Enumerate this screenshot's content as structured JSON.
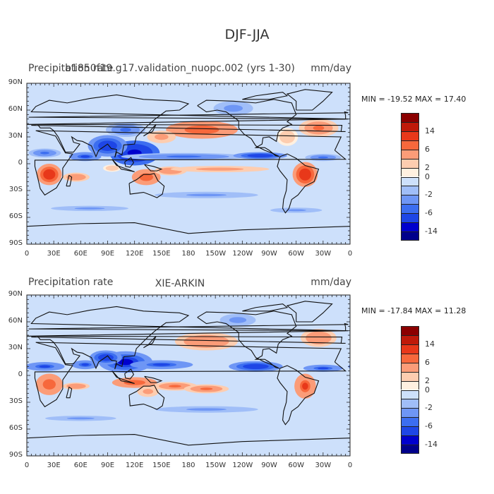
{
  "figure": {
    "title": "DJF-JJA"
  },
  "palette": [
    "#00008b",
    "#0000cd",
    "#1e46e6",
    "#3c6ef0",
    "#6e96f5",
    "#a0bef8",
    "#cde0fb",
    "#fff0e0",
    "#fdcdb0",
    "#fb9c78",
    "#f7683c",
    "#e8381a",
    "#bf1a0a",
    "#8b0000"
  ],
  "colorbar_labels": [
    "14",
    "6",
    "2",
    "0",
    "-2",
    "-6",
    "-14"
  ],
  "x_ticks": [
    "0",
    "30E",
    "60E",
    "90E",
    "120E",
    "150E",
    "180",
    "150W",
    "120W",
    "90W",
    "60W",
    "30W",
    "0"
  ],
  "y_ticks": [
    "90N",
    "60N",
    "30N",
    "0",
    "30S",
    "60S",
    "90S"
  ],
  "panels": [
    {
      "left_title": "Precipitation rate",
      "center_title": "b1850f19.g17.validation_nuopc.002 (yrs 1-30)",
      "units": "mm/day",
      "min_max": "MIN = -19.52  MAX =   17.40"
    },
    {
      "left_title": "Precipitation rate",
      "center_title": "XIE-ARKIN",
      "units": "mm/day",
      "min_max": "MIN = -17.84  MAX =   11.28"
    }
  ],
  "chart_data": [
    {
      "type": "heatmap",
      "title": "b1850f19.g17.validation_nuopc.002 (yrs 1-30)",
      "field": "Precipitation rate",
      "units": "mm/day",
      "min": -19.52,
      "max": 17.4,
      "x_range": [
        0,
        360
      ],
      "y_range": [
        -90,
        90
      ],
      "contour_levels": [
        -14,
        -6,
        -2,
        0,
        2,
        6,
        14
      ],
      "features": [
        {
          "lon": 120,
          "lat": 12,
          "rx": 28,
          "ry": 14,
          "v": -12
        },
        {
          "lon": 90,
          "lat": 20,
          "rx": 22,
          "ry": 12,
          "v": -9
        },
        {
          "lon": 65,
          "lat": 8,
          "rx": 18,
          "ry": 5,
          "v": -7
        },
        {
          "lon": 110,
          "lat": 38,
          "rx": 22,
          "ry": 8,
          "v": -4
        },
        {
          "lon": 175,
          "lat": 8,
          "rx": 70,
          "ry": 4,
          "v": -5
        },
        {
          "lon": 260,
          "lat": 9,
          "rx": 30,
          "ry": 4,
          "v": -8
        },
        {
          "lon": 330,
          "lat": 7,
          "rx": 20,
          "ry": 4,
          "v": -5
        },
        {
          "lon": 20,
          "lat": 12,
          "rx": 18,
          "ry": 5,
          "v": -4
        },
        {
          "lon": 195,
          "lat": 38,
          "rx": 40,
          "ry": 10,
          "v": 6
        },
        {
          "lon": 150,
          "lat": 30,
          "rx": 16,
          "ry": 7,
          "v": 3
        },
        {
          "lon": 325,
          "lat": 40,
          "rx": 22,
          "ry": 10,
          "v": 5
        },
        {
          "lon": 290,
          "lat": 30,
          "rx": 12,
          "ry": 10,
          "v": 2
        },
        {
          "lon": 25,
          "lat": -12,
          "rx": 14,
          "ry": 12,
          "v": 9
        },
        {
          "lon": 310,
          "lat": -12,
          "rx": 14,
          "ry": 14,
          "v": 10
        },
        {
          "lon": 133,
          "lat": -15,
          "rx": 16,
          "ry": 9,
          "v": 6
        },
        {
          "lon": 160,
          "lat": -8,
          "rx": 18,
          "ry": 5,
          "v": 4
        },
        {
          "lon": 215,
          "lat": -6,
          "rx": 55,
          "ry": 3.5,
          "v": 3
        },
        {
          "lon": 55,
          "lat": -15,
          "rx": 15,
          "ry": 5,
          "v": 4
        },
        {
          "lon": 95,
          "lat": -5,
          "rx": 10,
          "ry": 4,
          "v": 2
        },
        {
          "lon": 200,
          "lat": -35,
          "rx": 80,
          "ry": 5,
          "v": -2
        },
        {
          "lon": 70,
          "lat": -50,
          "rx": 60,
          "ry": 4,
          "v": -2
        },
        {
          "lon": 300,
          "lat": -52,
          "rx": 40,
          "ry": 4,
          "v": -2
        },
        {
          "lon": 230,
          "lat": 62,
          "rx": 22,
          "ry": 8,
          "v": -3
        }
      ]
    },
    {
      "type": "heatmap",
      "title": "XIE-ARKIN",
      "field": "Precipitation rate",
      "units": "mm/day",
      "min": -17.84,
      "max": 11.28,
      "x_range": [
        0,
        360
      ],
      "y_range": [
        -90,
        90
      ],
      "contour_levels": [
        -14,
        -6,
        -2,
        0,
        2,
        6,
        14
      ],
      "features": [
        {
          "lon": 110,
          "lat": 15,
          "rx": 30,
          "ry": 12,
          "v": -10
        },
        {
          "lon": 88,
          "lat": 20,
          "rx": 18,
          "ry": 8,
          "v": -9
        },
        {
          "lon": 150,
          "lat": 12,
          "rx": 35,
          "ry": 5,
          "v": -6
        },
        {
          "lon": 255,
          "lat": 10,
          "rx": 30,
          "ry": 6,
          "v": -8
        },
        {
          "lon": 330,
          "lat": 8,
          "rx": 22,
          "ry": 4,
          "v": -7
        },
        {
          "lon": 20,
          "lat": 10,
          "rx": 22,
          "ry": 5,
          "v": -6
        },
        {
          "lon": 65,
          "lat": 12,
          "rx": 15,
          "ry": 5,
          "v": -7
        },
        {
          "lon": 200,
          "lat": 38,
          "rx": 35,
          "ry": 10,
          "v": 4
        },
        {
          "lon": 325,
          "lat": 42,
          "rx": 20,
          "ry": 10,
          "v": 4
        },
        {
          "lon": 25,
          "lat": -10,
          "rx": 15,
          "ry": 12,
          "v": 6
        },
        {
          "lon": 310,
          "lat": -12,
          "rx": 12,
          "ry": 14,
          "v": 7
        },
        {
          "lon": 120,
          "lat": -8,
          "rx": 25,
          "ry": 6,
          "v": 6
        },
        {
          "lon": 165,
          "lat": -12,
          "rx": 25,
          "ry": 5,
          "v": 5
        },
        {
          "lon": 200,
          "lat": -15,
          "rx": 25,
          "ry": 5,
          "v": 5
        },
        {
          "lon": 55,
          "lat": -12,
          "rx": 15,
          "ry": 4,
          "v": 4
        },
        {
          "lon": 135,
          "lat": -18,
          "rx": 12,
          "ry": 6,
          "v": 3
        },
        {
          "lon": 200,
          "lat": -38,
          "rx": 80,
          "ry": 5,
          "v": -2
        },
        {
          "lon": 60,
          "lat": -48,
          "rx": 55,
          "ry": 4,
          "v": -2
        },
        {
          "lon": 235,
          "lat": 62,
          "rx": 20,
          "ry": 7,
          "v": -3
        }
      ]
    }
  ]
}
